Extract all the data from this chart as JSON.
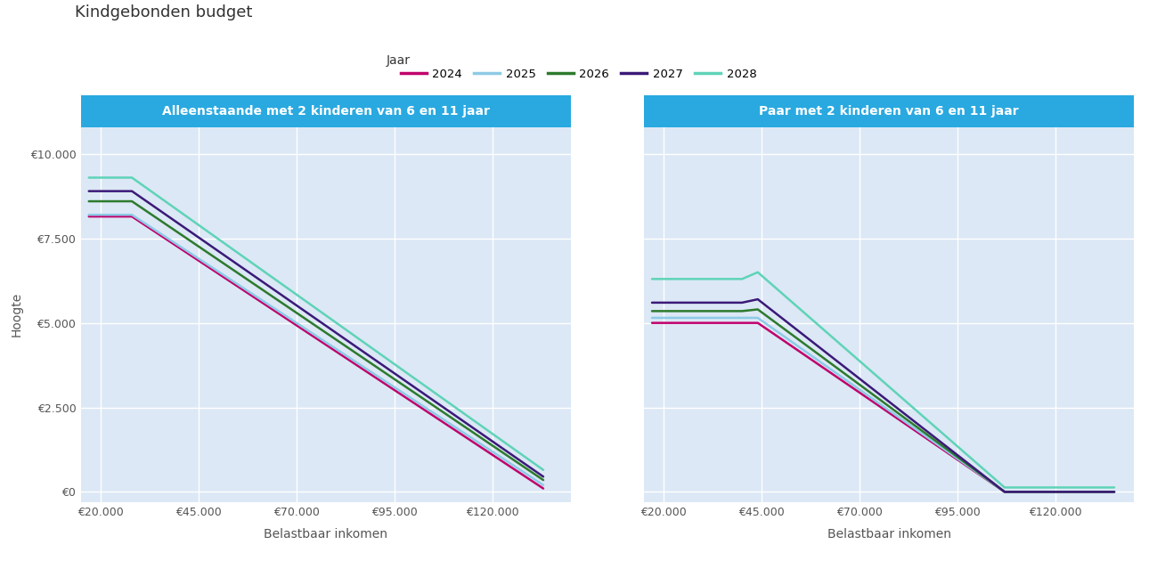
{
  "title": "Kindgebonden budget",
  "legend_label": "Jaar",
  "years": [
    "2024",
    "2025",
    "2026",
    "2027",
    "2028"
  ],
  "colors": [
    "#c0006a",
    "#8ecae6",
    "#2d7a2d",
    "#3b1a78",
    "#5fd3b8"
  ],
  "subplot1_title": "Alleenstaande met 2 kinderen van 6 en 11 jaar",
  "subplot2_title": "Paar met 2 kinderen van 6 en 11 jaar",
  "xlabel": "Belastbaar inkomen",
  "ylabel": "Hoogte",
  "plot_bg_color": "#dce8f5",
  "header_color": "#29a9e0",
  "x_ticks": [
    20000,
    45000,
    70000,
    95000,
    120000
  ],
  "x_tick_labels": [
    "€20.000",
    "€45.000",
    "€70.000",
    "€95.000",
    "€120.000"
  ],
  "y_ticks": [
    0,
    2500,
    5000,
    7500,
    10000
  ],
  "y_tick_labels": [
    "€0",
    "€2.500",
    "€5.000",
    "€7.500",
    "€10.000"
  ],
  "alleenstaande": {
    "x": [
      17000,
      28000,
      133000
    ],
    "data": {
      "2024": [
        8150,
        8150,
        100
      ],
      "2025": [
        8200,
        8200,
        200
      ],
      "2026": [
        8600,
        8600,
        350
      ],
      "2027": [
        8900,
        8900,
        450
      ],
      "2028": [
        9300,
        9300,
        650
      ]
    }
  },
  "paar": {
    "x": [
      17000,
      40000,
      44000,
      107000,
      135000
    ],
    "data": {
      "2024": [
        5000,
        5000,
        5000,
        0,
        0
      ],
      "2025": [
        5150,
        5150,
        5150,
        0,
        0
      ],
      "2026": [
        5350,
        5350,
        5400,
        0,
        0
      ],
      "2027": [
        5600,
        5600,
        5700,
        0,
        0
      ],
      "2028": [
        6300,
        6300,
        6500,
        130,
        130
      ]
    }
  }
}
